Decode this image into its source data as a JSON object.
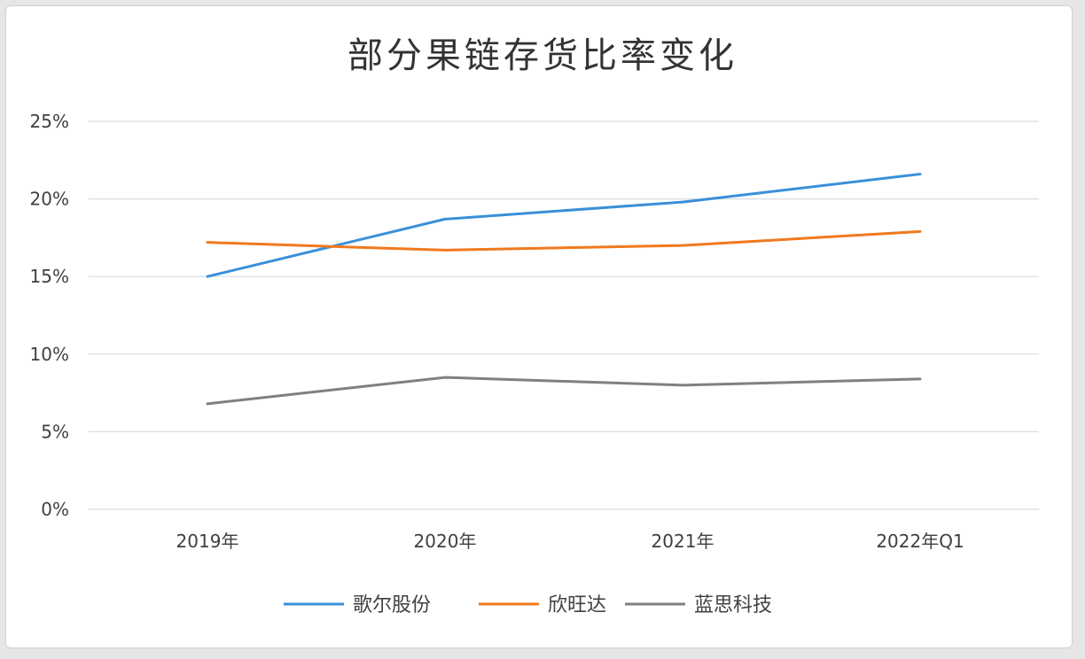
{
  "chart_data": {
    "type": "line",
    "title": "部分果链存货比率变化",
    "categories": [
      "2019年",
      "2020年",
      "2021年",
      "2022年Q1"
    ],
    "ylim": [
      0,
      25
    ],
    "yticks": [
      0,
      5,
      10,
      15,
      20,
      25
    ],
    "ytick_labels": [
      "0%",
      "5%",
      "10%",
      "15%",
      "20%",
      "25%"
    ],
    "grid": true,
    "legend_position": "bottom",
    "series": [
      {
        "name": "歌尔股份",
        "color": "#3a8fd9",
        "values": [
          15.0,
          18.7,
          19.8,
          21.6
        ]
      },
      {
        "name": "欣旺达",
        "color": "#f07a1e",
        "values": [
          17.2,
          16.7,
          17.0,
          17.9
        ]
      },
      {
        "name": "蓝思科技",
        "color": "#808080",
        "values": [
          6.8,
          8.5,
          8.0,
          8.4
        ]
      }
    ]
  }
}
